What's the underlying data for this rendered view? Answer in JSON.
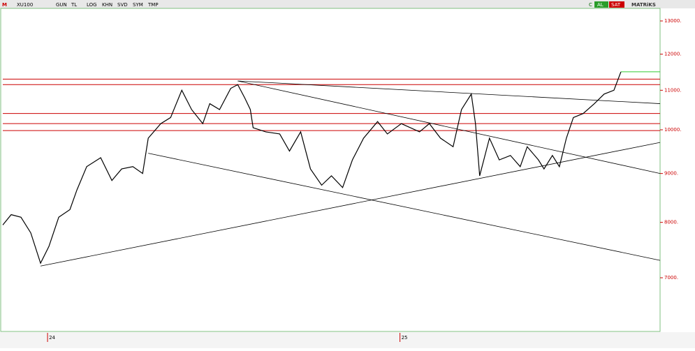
{
  "toolbar": {
    "logo": "M",
    "symbol": "XU100",
    "buttons": [
      "GUN",
      "TL",
      "LOG",
      "KHN",
      "SVD",
      "SYM",
      "TMP"
    ],
    "c": "C",
    "buy": "AL",
    "sell": "SAT",
    "brand": "MATRiKS"
  },
  "chart_data": {
    "type": "line",
    "log_scale": true,
    "color": "#000000",
    "x": [
      -32,
      -26,
      -19,
      -12,
      -5,
      1,
      8,
      16,
      21,
      28,
      38,
      46,
      53,
      61,
      68,
      72,
      81,
      88,
      96,
      103,
      111,
      116,
      123,
      131,
      136,
      141,
      145,
      147,
      156,
      166,
      173,
      181,
      188,
      196,
      203,
      211,
      218,
      226,
      236,
      243,
      253,
      266,
      273,
      281,
      290,
      296,
      303,
      306,
      309,
      316,
      323,
      331,
      338,
      343,
      351,
      355,
      361,
      366,
      371,
      376,
      383,
      391,
      398,
      405,
      410
    ],
    "values": [
      7950,
      8150,
      8100,
      7800,
      7250,
      7550,
      8100,
      8250,
      8650,
      9150,
      9350,
      8850,
      9100,
      9150,
      9000,
      9800,
      10150,
      10300,
      11000,
      10500,
      10150,
      10650,
      10500,
      11050,
      11150,
      10800,
      10500,
      10050,
      9950,
      9900,
      9500,
      9950,
      9100,
      8750,
      8950,
      8700,
      9300,
      9800,
      10200,
      9900,
      10150,
      9950,
      10150,
      9800,
      9600,
      10500,
      10900,
      10150,
      8950,
      9800,
      9300,
      9400,
      9150,
      9600,
      9300,
      9100,
      9400,
      9150,
      9800,
      10300,
      10400,
      10650,
      10900,
      11000,
      11500
    ],
    "xlim": [
      -32,
      438
    ],
    "ylim": [
      6150,
      13400
    ],
    "xticks": [
      {
        "value": 0,
        "label": "24"
      },
      {
        "value": 252,
        "label": "25"
      }
    ],
    "yticks": [
      {
        "value": 13000,
        "label": "13000."
      },
      {
        "value": 12000,
        "label": "12000."
      },
      {
        "value": 11000,
        "label": "11000."
      },
      {
        "value": 10000,
        "label": "10000."
      },
      {
        "value": 9000,
        "label": "9000."
      },
      {
        "value": 8000,
        "label": "8000."
      },
      {
        "value": 7000,
        "label": "7000."
      }
    ],
    "hlines": [
      11300,
      11150,
      10400,
      10150,
      9980
    ],
    "hline_color": "#cc0000",
    "trendlines": [
      [
        [
          -5,
          7200
        ],
        [
          438,
          9700
        ]
      ],
      [
        [
          136,
          11250
        ],
        [
          438,
          10650
        ]
      ],
      [
        [
          72,
          9450
        ],
        [
          438,
          7300
        ]
      ],
      [
        [
          136,
          11250
        ],
        [
          438,
          9000
        ]
      ]
    ],
    "last_line": {
      "value": 11500,
      "from": 410,
      "color": "#33cc33"
    }
  }
}
